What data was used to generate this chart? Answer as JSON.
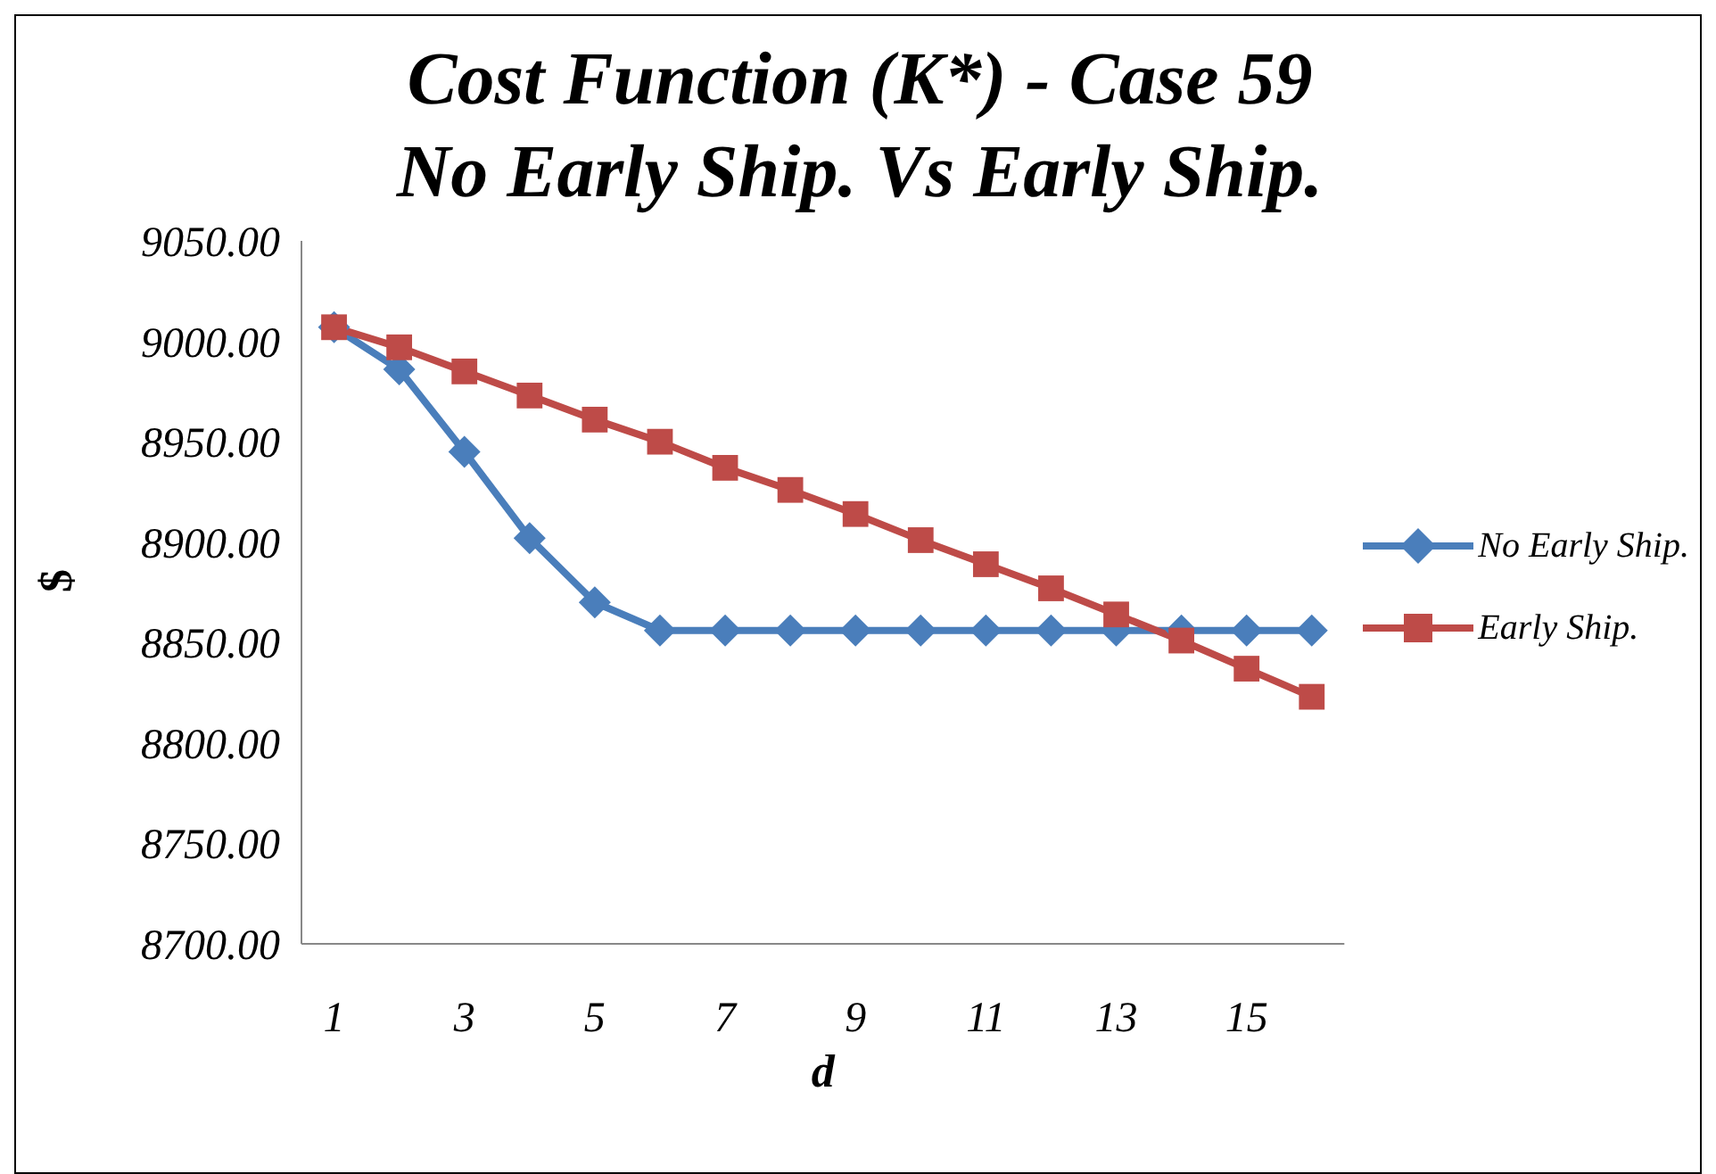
{
  "chart_data": {
    "type": "line",
    "title": "Cost Function (K*) - Case 59",
    "subtitle": "No Early Ship. Vs Early Ship.",
    "xlabel": "d",
    "ylabel": "$",
    "x": [
      1,
      2,
      3,
      4,
      5,
      6,
      7,
      8,
      9,
      10,
      11,
      12,
      13,
      14,
      15,
      16
    ],
    "xlim": [
      0.5,
      16.5
    ],
    "xticks": [
      1,
      3,
      5,
      7,
      9,
      11,
      13,
      15
    ],
    "series": [
      {
        "name": "No Early Ship.",
        "color": "#4a7ebb",
        "marker": "diamond",
        "values": [
          9007,
          8986,
          8945,
          8902,
          8870,
          8856,
          8856,
          8856,
          8856,
          8856,
          8856,
          8856,
          8856,
          8856,
          8856,
          8856
        ]
      },
      {
        "name": "Early Ship.",
        "color": "#be4b48",
        "marker": "square",
        "values": [
          9007,
          8997,
          8985,
          8973,
          8961,
          8950,
          8937,
          8926,
          8914,
          8901,
          8889,
          8877,
          8864,
          8851,
          8837,
          8823
        ]
      }
    ],
    "ylim": [
      8700,
      9050
    ],
    "yticks": [
      {
        "value": 8700,
        "label": "8700.00"
      },
      {
        "value": 8750,
        "label": "8750.00"
      },
      {
        "value": 8800,
        "label": "8800.00"
      },
      {
        "value": 8850,
        "label": "8850.00"
      },
      {
        "value": 8900,
        "label": "8900.00"
      },
      {
        "value": 8950,
        "label": "8950.00"
      },
      {
        "value": 9000,
        "label": "9000.00"
      },
      {
        "value": 9050,
        "label": "9050.00"
      }
    ],
    "grid": false,
    "legend": "right",
    "line_style": "solid"
  }
}
